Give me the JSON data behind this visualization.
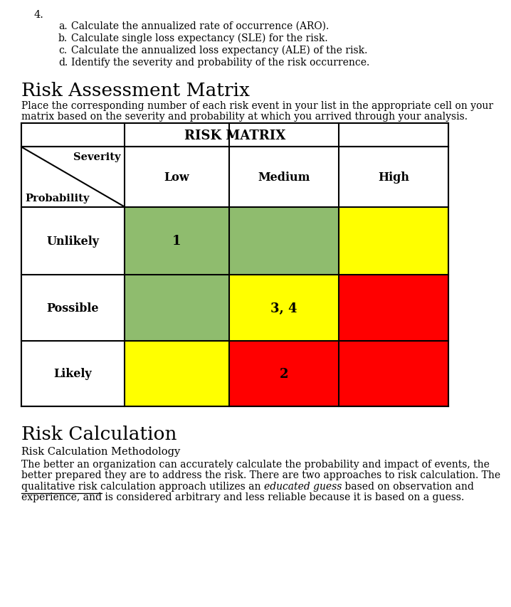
{
  "page_bg": "#ffffff",
  "number_label": "4.",
  "list_items": [
    "Calculate the annualized rate of occurrence (ARO).",
    "Calculate single loss expectancy (SLE) for the risk.",
    "Calculate the annualized loss expectancy (ALE) of the risk.",
    "Identify the severity and probability of the risk occurrence."
  ],
  "list_letters": [
    "a.",
    "b.",
    "c.",
    "d."
  ],
  "section_title": "Risk Assessment Matrix",
  "section_desc_line1": "Place the corresponding number of each risk event in your list in the appropriate cell on your",
  "section_desc_line2": "matrix based on the severity and probability at which you arrived through your analysis.",
  "matrix_title": "RISK MATRIX",
  "col_headers": [
    "Low",
    "Medium",
    "High"
  ],
  "row_headers": [
    "Unlikely",
    "Possible",
    "Likely"
  ],
  "header_diag_top": "Severity",
  "header_diag_bot": "Probability",
  "cell_colors": [
    [
      "#8fbc6e",
      "#8fbc6e",
      "#ffff00"
    ],
    [
      "#8fbc6e",
      "#ffff00",
      "#ff0000"
    ],
    [
      "#ffff00",
      "#ff0000",
      "#ff0000"
    ]
  ],
  "cell_labels": [
    [
      "1",
      "",
      ""
    ],
    [
      "",
      "3, 4",
      ""
    ],
    [
      "",
      "2",
      ""
    ]
  ],
  "section2_title": "Risk Calculation",
  "section2_sub": "Risk Calculation Methodology",
  "section2_body_lines": [
    [
      "normal",
      "The better an organization can accurately calculate the probability and impact of events, the"
    ],
    [
      "normal",
      "better prepared they are to address the risk. There are two approaches to risk calculation. The"
    ],
    [
      "mixed_italic",
      "qualitative risk calculation approach utilizes an ",
      "educated guess",
      " based on observation and"
    ],
    [
      "mixed_underline",
      "experience, and",
      " is considered arbitrary and less reliable because it is based on a guess."
    ]
  ]
}
